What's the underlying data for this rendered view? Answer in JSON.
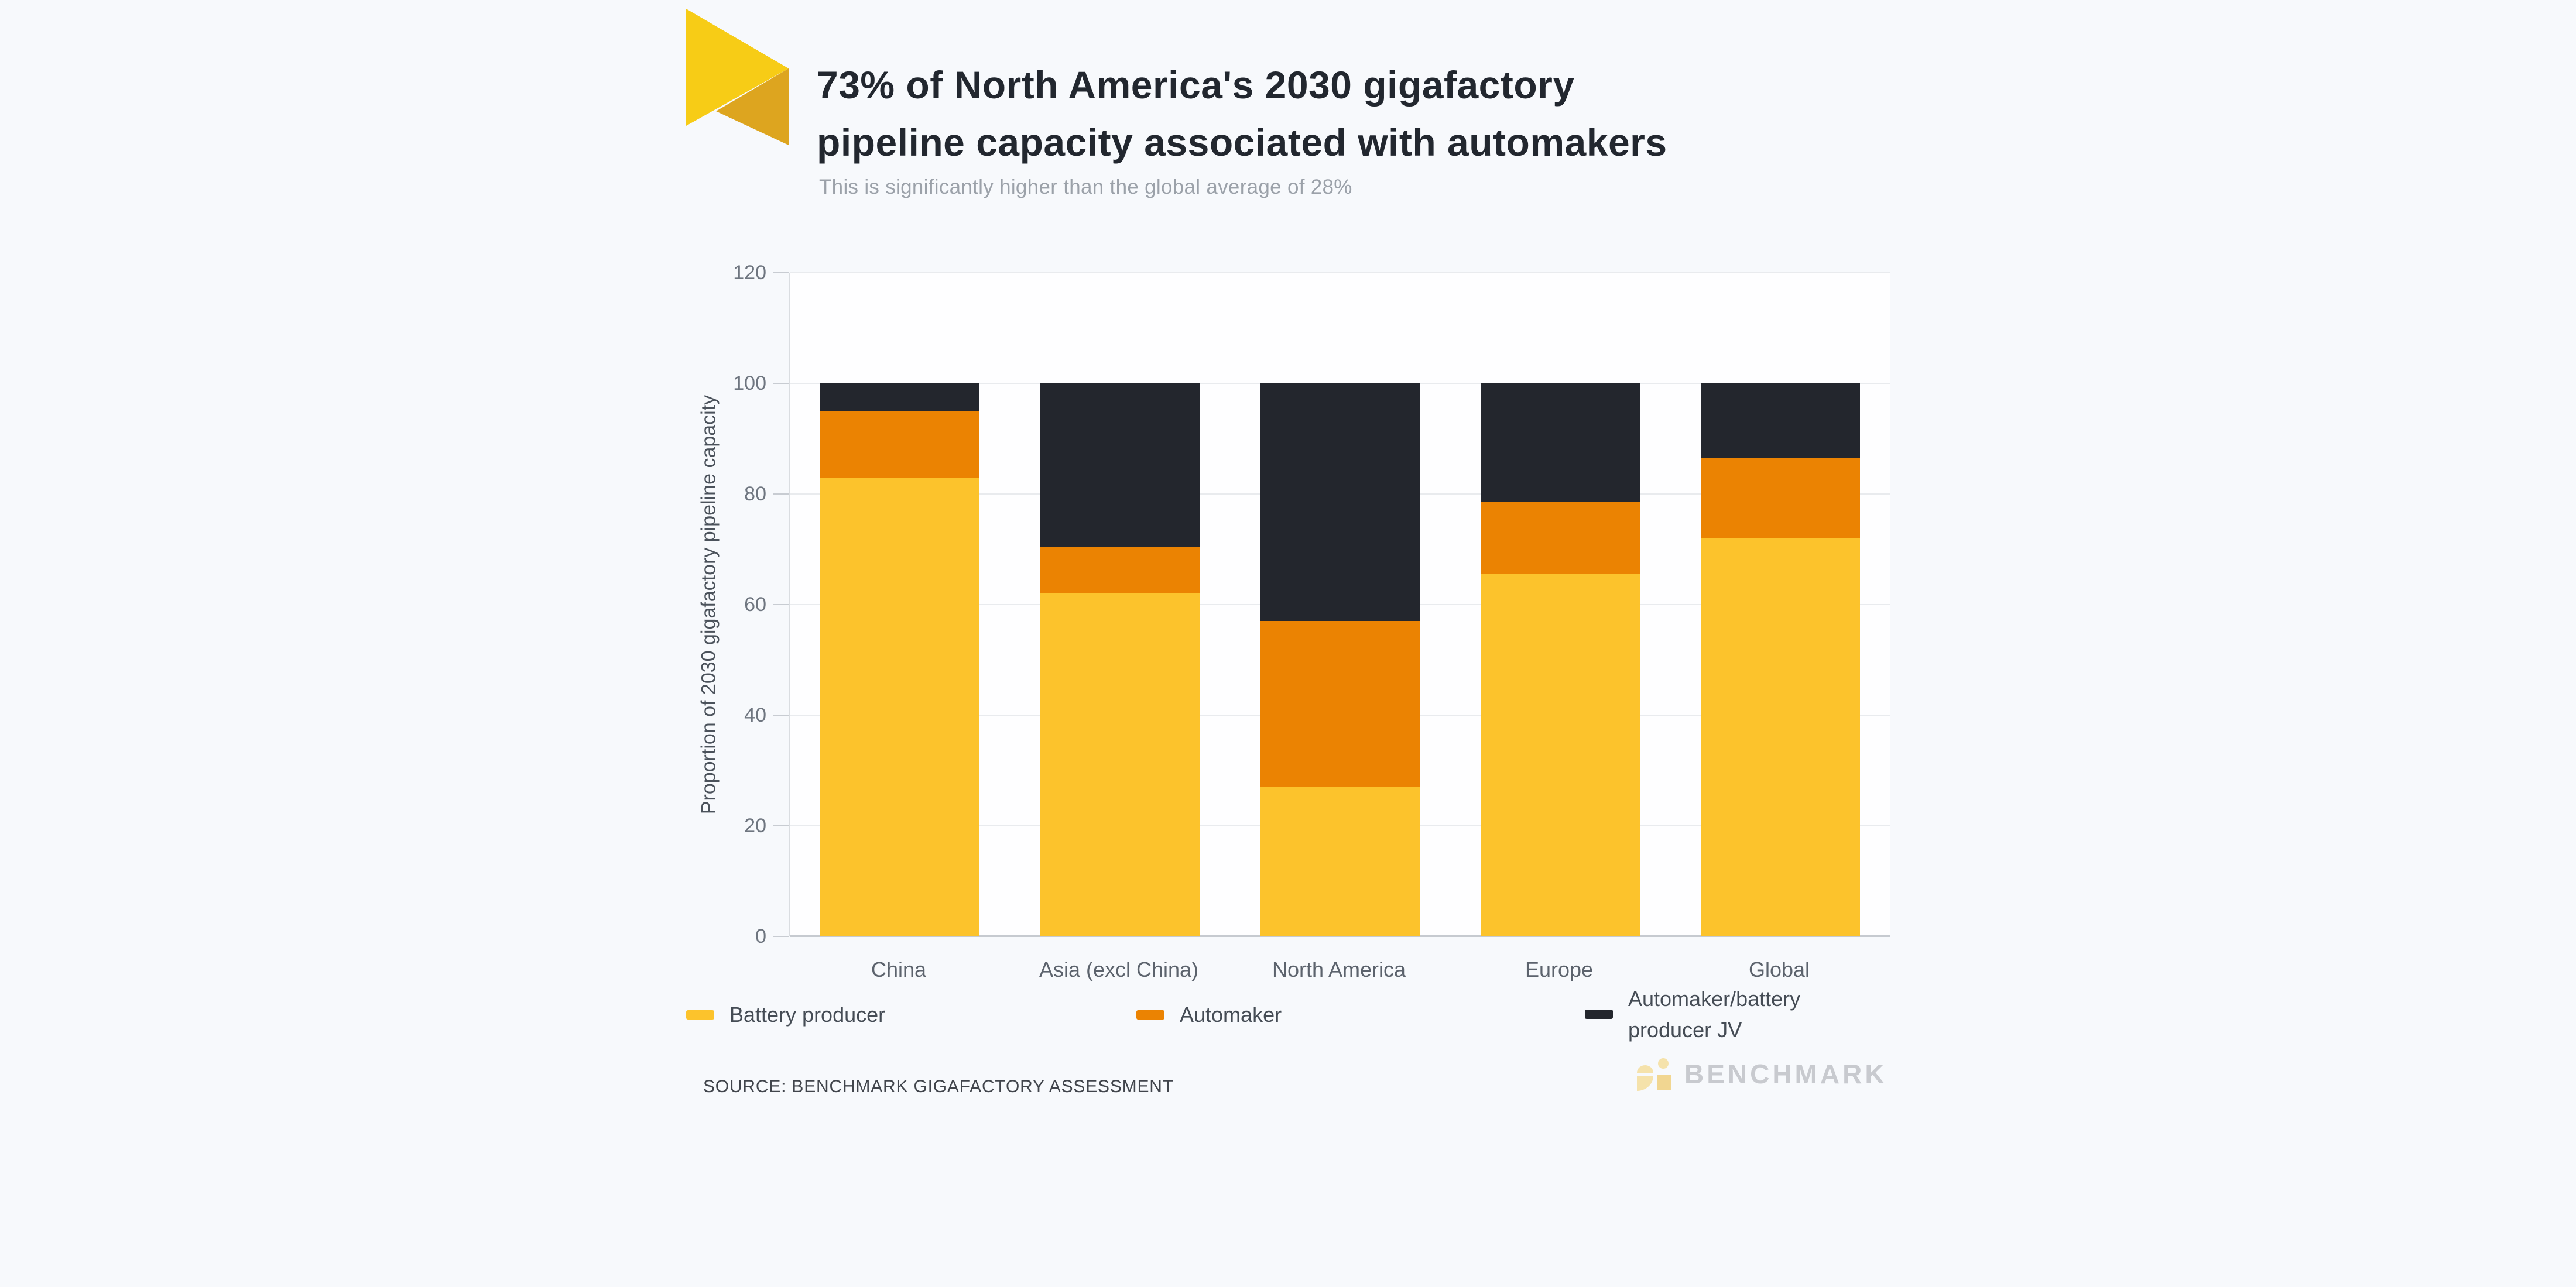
{
  "header": {
    "title_line1": "73% of North America's 2030 gigafactory",
    "title_line2": "pipeline capacity associated with automakers",
    "subtitle": "This is significantly higher than the global average of 28%"
  },
  "brand": {
    "flag_primary_color": "#F7CC16",
    "flag_secondary_color": "#DDA51F",
    "footer_logo_text": "BENCHMARK",
    "footer_logo_text_color": "#C8CACF",
    "footer_icon_color_light": "#F5E2AB",
    "footer_icon_color_dark": "#F1D691"
  },
  "legend": {
    "items": [
      {
        "label": "Battery producer",
        "color": "#FCC32C"
      },
      {
        "label": "Automaker",
        "color": "#EB8302"
      },
      {
        "label_line1": "Automaker/battery",
        "label_line2": "producer JV",
        "color": "#23262D"
      }
    ]
  },
  "source": {
    "label": "SOURCE: BENCHMARK GIGAFACTORY ASSESSMENT"
  },
  "chart_data": {
    "type": "bar",
    "stacked": true,
    "title": "73% of North America's 2030 gigafactory pipeline capacity associated with automakers",
    "subtitle": "This is significantly higher than the global average of 28%",
    "categories": [
      "China",
      "Asia (excl China)",
      "North America",
      "Europe",
      "Global"
    ],
    "series": [
      {
        "name": "Battery producer",
        "color": "#FCC32C",
        "values": [
          83,
          62,
          27,
          65.5,
          72
        ]
      },
      {
        "name": "Automaker",
        "color": "#EB8302",
        "values": [
          12,
          8.5,
          30,
          13,
          14.5
        ]
      },
      {
        "name": "Automaker/battery producer JV",
        "color": "#23262D",
        "values": [
          5,
          29.5,
          43,
          21.5,
          13.5
        ]
      }
    ],
    "xlabel": "",
    "ylabel": "Proportion of 2030 gigafactory pipeline capacity",
    "ylim": [
      0,
      120
    ],
    "yticks": [
      0,
      20,
      40,
      60,
      80,
      100,
      120
    ],
    "grid": true,
    "legend_position": "bottom",
    "units": "percent"
  }
}
